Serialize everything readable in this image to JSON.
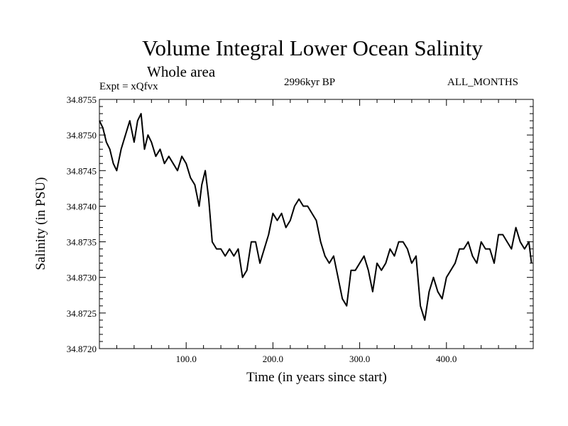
{
  "chart_data": {
    "type": "line",
    "title": "Volume Integral Lower Ocean Salinity",
    "subtitle": "Whole area",
    "annotations": {
      "left": "Expt = xQfvx",
      "center": "2996kyr BP",
      "right": "ALL_MONTHS"
    },
    "xlabel": "Time (in years since start)",
    "ylabel": "Salinity (in PSU)",
    "xlim": [
      0,
      500
    ],
    "ylim": [
      34.872,
      34.8755
    ],
    "xticks": [
      100,
      200,
      300,
      400
    ],
    "xtick_labels": [
      "100.0",
      "200.0",
      "300.0",
      "400.0"
    ],
    "yticks": [
      34.872,
      34.8725,
      34.873,
      34.8735,
      34.874,
      34.8745,
      34.875,
      34.8755
    ],
    "ytick_labels": [
      "34.8720",
      "34.8725",
      "34.8730",
      "34.8735",
      "34.8740",
      "34.8745",
      "34.8750",
      "34.8755"
    ],
    "series": [
      {
        "name": "Lower ocean salinity",
        "x": [
          0,
          4,
          8,
          12,
          16,
          20,
          25,
          30,
          35,
          40,
          44,
          48,
          52,
          56,
          60,
          65,
          70,
          75,
          80,
          85,
          90,
          95,
          100,
          105,
          110,
          115,
          118,
          122,
          126,
          130,
          135,
          140,
          145,
          150,
          155,
          160,
          165,
          170,
          175,
          180,
          185,
          190,
          195,
          200,
          205,
          210,
          215,
          220,
          225,
          230,
          235,
          240,
          245,
          250,
          255,
          260,
          265,
          270,
          275,
          280,
          285,
          290,
          295,
          300,
          305,
          310,
          315,
          320,
          325,
          330,
          335,
          340,
          345,
          350,
          355,
          360,
          365,
          370,
          375,
          380,
          385,
          390,
          395,
          400,
          405,
          410,
          415,
          420,
          425,
          430,
          435,
          440,
          445,
          450,
          455,
          460,
          465,
          470,
          475,
          480,
          485,
          490,
          495,
          498
        ],
        "values": [
          34.8752,
          34.8751,
          34.8749,
          34.8748,
          34.8746,
          34.8745,
          34.8748,
          34.875,
          34.8752,
          34.8749,
          34.8752,
          34.8753,
          34.8748,
          34.875,
          34.8749,
          34.8747,
          34.8748,
          34.8746,
          34.8747,
          34.8746,
          34.8745,
          34.8747,
          34.8746,
          34.8744,
          34.8743,
          34.874,
          34.8743,
          34.8745,
          34.8741,
          34.8735,
          34.8734,
          34.8734,
          34.8733,
          34.8734,
          34.8733,
          34.8734,
          34.873,
          34.8731,
          34.8735,
          34.8735,
          34.8732,
          34.8734,
          34.8736,
          34.8739,
          34.8738,
          34.8739,
          34.8737,
          34.8738,
          34.874,
          34.8741,
          34.874,
          34.874,
          34.8739,
          34.8738,
          34.8735,
          34.8733,
          34.8732,
          34.8733,
          34.873,
          34.8727,
          34.8726,
          34.8731,
          34.8731,
          34.8732,
          34.8733,
          34.8731,
          34.8728,
          34.8732,
          34.8731,
          34.8732,
          34.8734,
          34.8733,
          34.8735,
          34.8735,
          34.8734,
          34.8732,
          34.8733,
          34.8726,
          34.8724,
          34.8728,
          34.873,
          34.8728,
          34.8727,
          34.873,
          34.8731,
          34.8732,
          34.8734,
          34.8734,
          34.8735,
          34.8733,
          34.8732,
          34.8735,
          34.8734,
          34.8734,
          34.8732,
          34.8736,
          34.8736,
          34.8735,
          34.8734,
          34.8737,
          34.8735,
          34.8734,
          34.8735,
          34.8732
        ]
      }
    ],
    "grid": false,
    "colors": {
      "line": "#000000",
      "axes": "#000000",
      "background": "#ffffff"
    }
  }
}
